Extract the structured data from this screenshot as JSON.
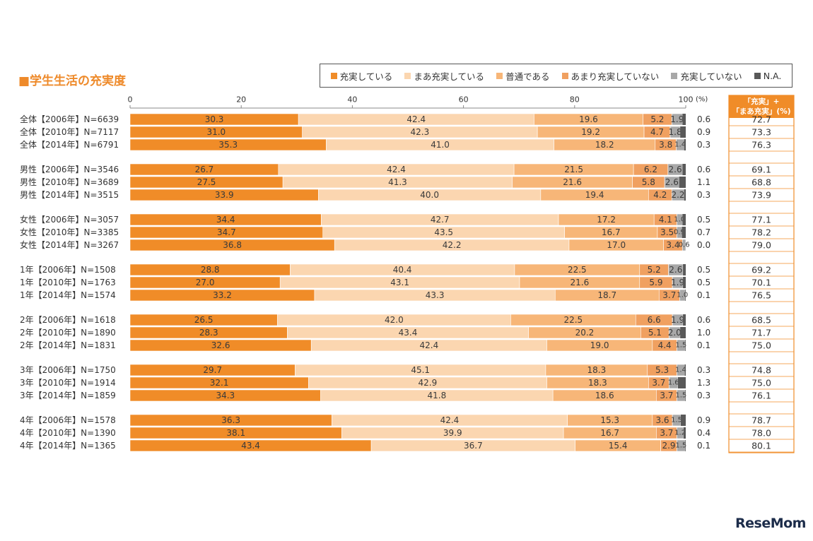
{
  "title": "■学生生活の充実度",
  "logo_text": "ReseMom",
  "legend": [
    {
      "label": "充実している",
      "color": "#f08c28"
    },
    {
      "label": "まあ充実している",
      "color": "#fbd6b0"
    },
    {
      "label": "普通である",
      "color": "#f7b678"
    },
    {
      "label": "あまり充実していない",
      "color": "#f0a060"
    },
    {
      "label": "充実していない",
      "color": "#a8a8a8"
    },
    {
      "label": "N.A.",
      "color": "#595959"
    }
  ],
  "chart_data": {
    "type": "bar",
    "orientation": "horizontal-stacked-percent",
    "title": "■学生生活の充実度",
    "xlim": [
      0,
      100
    ],
    "x_ticks": [
      "0",
      "20",
      "40",
      "60",
      "80",
      "100"
    ],
    "x_unit": "(%)",
    "series_names": [
      "充実している",
      "まあ充実している",
      "普通である",
      "あまり充実していない",
      "充実していない"
    ],
    "side_column_header": [
      "「充実」+",
      "「まあ充実」(%)"
    ],
    "groups": [
      {
        "rows": [
          {
            "label": "全体【2006年】N=6639",
            "values": [
              30.3,
              42.4,
              19.6,
              5.2,
              1.9
            ],
            "na": "0.6",
            "total": "72.7"
          },
          {
            "label": "全体【2010年】N=7117",
            "values": [
              31.0,
              42.3,
              19.2,
              4.7,
              1.8
            ],
            "na": "0.9",
            "total": "73.3"
          },
          {
            "label": "全体【2014年】N=6791",
            "values": [
              35.3,
              41.0,
              18.2,
              3.8,
              1.4
            ],
            "na": "0.3",
            "total": "76.3"
          }
        ]
      },
      {
        "rows": [
          {
            "label": "男性【2006年】N=3546",
            "values": [
              26.7,
              42.4,
              21.5,
              6.2,
              2.6
            ],
            "na": "0.6",
            "total": "69.1"
          },
          {
            "label": "男性【2010年】N=3689",
            "values": [
              27.5,
              41.3,
              21.6,
              5.8,
              2.6
            ],
            "na": "1.1",
            "total": "68.8"
          },
          {
            "label": "男性【2014年】N=3515",
            "values": [
              33.9,
              40.0,
              19.4,
              4.2,
              2.2
            ],
            "na": "0.3",
            "total": "73.9"
          }
        ]
      },
      {
        "rows": [
          {
            "label": "女性【2006年】N=3057",
            "values": [
              34.4,
              42.7,
              17.2,
              4.1,
              1.0
            ],
            "na": "0.5",
            "total": "77.1"
          },
          {
            "label": "女性【2010年】N=3385",
            "values": [
              34.7,
              43.5,
              16.7,
              3.5,
              0.9
            ],
            "na": "0.7",
            "total": "78.2"
          },
          {
            "label": "女性【2014年】N=3267",
            "values": [
              36.8,
              42.2,
              17.0,
              3.4,
              0.6
            ],
            "na": "0.0",
            "total": "79.0"
          }
        ]
      },
      {
        "rows": [
          {
            "label": "1年【2006年】N=1508",
            "values": [
              28.8,
              40.4,
              22.5,
              5.2,
              2.6
            ],
            "na": "0.5",
            "total": "69.2"
          },
          {
            "label": "1年【2010年】N=1763",
            "values": [
              27.0,
              43.1,
              21.6,
              5.9,
              1.9
            ],
            "na": "0.5",
            "total": "70.1"
          },
          {
            "label": "1年【2014年】N=1574",
            "values": [
              33.2,
              43.3,
              18.7,
              3.7,
              1.0
            ],
            "na": "0.1",
            "total": "76.5"
          }
        ]
      },
      {
        "rows": [
          {
            "label": "2年【2006年】N=1618",
            "values": [
              26.5,
              42.0,
              22.5,
              6.6,
              1.9
            ],
            "na": "0.6",
            "total": "68.5"
          },
          {
            "label": "2年【2010年】N=1890",
            "values": [
              28.3,
              43.4,
              20.2,
              5.1,
              2.0
            ],
            "na": "1.0",
            "total": "71.7"
          },
          {
            "label": "2年【2014年】N=1831",
            "values": [
              32.6,
              42.4,
              19.0,
              4.4,
              1.5
            ],
            "na": "0.1",
            "total": "75.0"
          }
        ]
      },
      {
        "rows": [
          {
            "label": "3年【2006年】N=1750",
            "values": [
              29.7,
              45.1,
              18.3,
              5.3,
              1.4
            ],
            "na": "0.3",
            "total": "74.8"
          },
          {
            "label": "3年【2010年】N=1914",
            "values": [
              32.1,
              42.9,
              18.3,
              3.7,
              1.6
            ],
            "na": "1.3",
            "total": "75.0"
          },
          {
            "label": "3年【2014年】N=1859",
            "values": [
              34.3,
              41.8,
              18.6,
              3.7,
              1.5
            ],
            "na": "0.3",
            "total": "76.1"
          }
        ]
      },
      {
        "rows": [
          {
            "label": "4年【2006年】N=1578",
            "values": [
              36.3,
              42.4,
              15.3,
              3.6,
              1.5
            ],
            "na": "0.9",
            "total": "78.7"
          },
          {
            "label": "4年【2010年】N=1390",
            "values": [
              38.1,
              39.9,
              16.7,
              3.7,
              1.2
            ],
            "na": "0.4",
            "total": "78.0"
          },
          {
            "label": "4年【2014年】N=1365",
            "values": [
              43.4,
              36.7,
              15.4,
              2.9,
              1.5
            ],
            "na": "0.1",
            "total": "80.1"
          }
        ]
      }
    ]
  }
}
